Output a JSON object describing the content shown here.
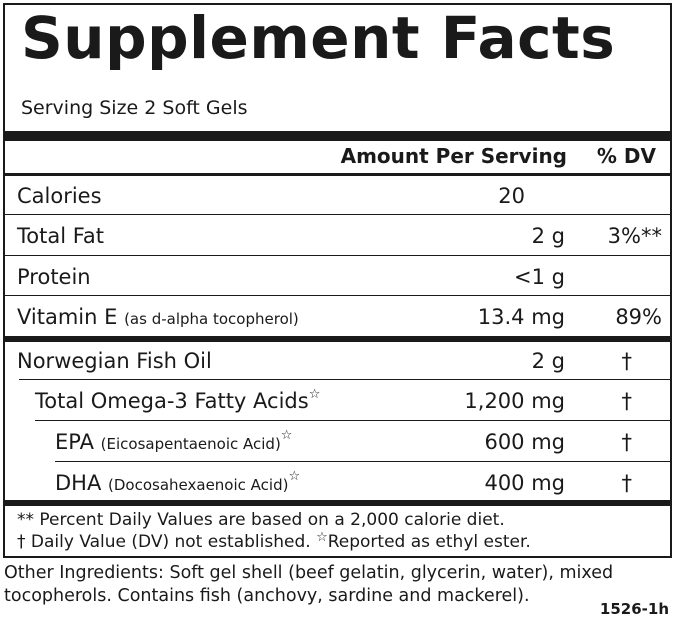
{
  "title": "Supplement Facts",
  "serving_size": "Serving Size 2 Soft Gels",
  "header": {
    "amount": "Amount Per Serving",
    "dv": "% DV"
  },
  "rows": [
    {
      "name": "Calories",
      "sub": "",
      "star": "",
      "amount": "20",
      "dv": ""
    },
    {
      "name": "Total Fat",
      "sub": "",
      "star": "",
      "amount": "2 g",
      "dv": "3%**"
    },
    {
      "name": "Protein",
      "sub": "",
      "star": "",
      "amount": "<1 g",
      "dv": ""
    },
    {
      "name": "Vitamin E",
      "sub": "(as d-alpha tocopherol)",
      "star": "",
      "amount": "13.4 mg",
      "dv": "89%"
    },
    {
      "name": "Norwegian Fish Oil",
      "sub": "",
      "star": "",
      "amount": "2 g",
      "dv": "†"
    },
    {
      "name": "Total Omega-3 Fatty Acids",
      "sub": "",
      "star": "☆",
      "amount": "1,200 mg",
      "dv": "†"
    },
    {
      "name": "EPA",
      "sub": "(Eicosapentaenoic Acid)",
      "star": "☆",
      "amount": "600 mg",
      "dv": "†"
    },
    {
      "name": "DHA",
      "sub": "(Docosahexaenoic Acid)",
      "star": "☆",
      "amount": "400 mg",
      "dv": "†"
    }
  ],
  "footnotes": {
    "line1": "** Percent Daily Values are based on a 2,000 calorie diet.",
    "line2a": "† Daily Value (DV) not established.",
    "line2_star": "☆",
    "line2b": "Reported as ethyl ester."
  },
  "other_ingredients": {
    "line1": "Other Ingredients: Soft gel shell (beef gelatin, glycerin, water), mixed",
    "line2": "tocopherols. Contains fish (anchovy, sardine and mackerel)."
  },
  "code": "1526-1h"
}
